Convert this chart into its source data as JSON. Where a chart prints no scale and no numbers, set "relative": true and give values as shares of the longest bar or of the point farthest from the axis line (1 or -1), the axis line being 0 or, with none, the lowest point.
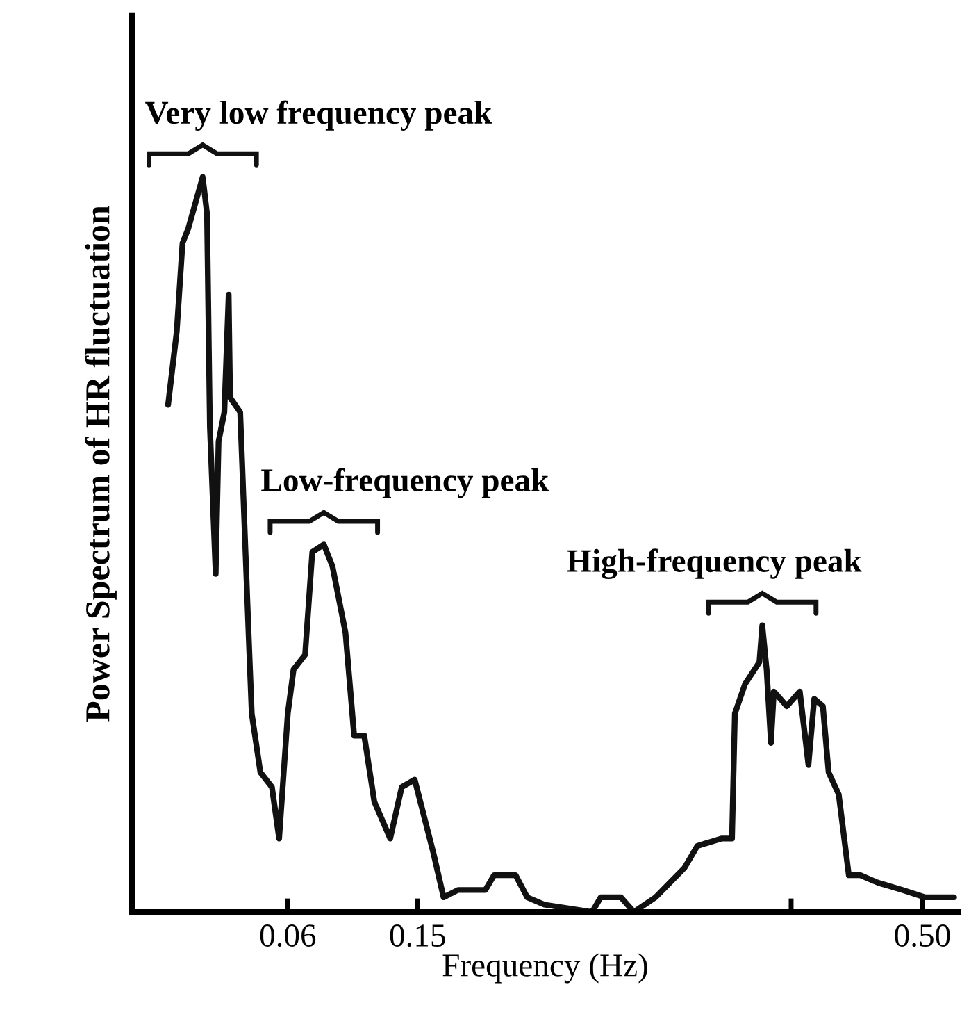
{
  "chart_data": {
    "type": "line",
    "relative": true,
    "xlabel": "Frequency (Hz)",
    "ylabel": "Power Spectrum of HR fluctuation",
    "xlim": [
      -0.048,
      0.525
    ],
    "xticks": [
      0.06,
      0.15,
      {
        "value": 0.409,
        "label": null
      },
      {
        "value": 0.5,
        "label": "0.50"
      }
    ],
    "grid": false,
    "legend": false,
    "marker": "none",
    "line_style": "solid",
    "annotations": [
      {
        "text": "Very low frequency peak",
        "x": 0.001,
        "y": 1.0
      },
      {
        "text": "Low-frequency peak",
        "x": 0.085,
        "y": 0.5
      },
      {
        "text": "High-frequency peak",
        "x": 0.389,
        "y": 0.39
      }
    ],
    "series": [
      {
        "color": "#111111",
        "x": [
          -0.023,
          -0.017,
          -0.013,
          -0.009,
          0.001,
          0.004,
          0.006,
          0.01,
          0.012,
          0.016,
          0.019,
          0.02,
          0.027,
          0.033,
          0.035,
          0.041,
          0.049,
          0.054,
          0.06,
          0.064,
          0.072,
          0.077,
          0.085,
          0.091,
          0.1,
          0.106,
          0.113,
          0.12,
          0.131,
          0.139,
          0.148,
          0.161,
          0.168,
          0.178,
          0.197,
          0.203,
          0.218,
          0.226,
          0.238,
          0.271,
          0.277,
          0.291,
          0.3,
          0.315,
          0.335,
          0.344,
          0.361,
          0.368,
          0.37,
          0.377,
          0.387,
          0.389,
          0.392,
          0.395,
          0.397,
          0.406,
          0.415,
          0.421,
          0.425,
          0.431,
          0.435,
          0.442,
          0.449,
          0.457,
          0.469,
          0.486,
          0.502,
          0.522
        ],
        "values": [
          0.69,
          0.79,
          0.91,
          0.93,
          1.0,
          0.95,
          0.66,
          0.46,
          0.64,
          0.68,
          0.84,
          0.7,
          0.68,
          0.37,
          0.27,
          0.19,
          0.17,
          0.1,
          0.27,
          0.33,
          0.35,
          0.49,
          0.5,
          0.47,
          0.38,
          0.24,
          0.24,
          0.15,
          0.1,
          0.17,
          0.18,
          0.08,
          0.02,
          0.03,
          0.03,
          0.05,
          0.05,
          0.02,
          0.01,
          0.0,
          0.02,
          0.02,
          0.0,
          0.02,
          0.06,
          0.09,
          0.1,
          0.1,
          0.27,
          0.31,
          0.34,
          0.39,
          0.33,
          0.23,
          0.3,
          0.28,
          0.3,
          0.2,
          0.29,
          0.28,
          0.19,
          0.16,
          0.05,
          0.05,
          0.04,
          0.03,
          0.02,
          0.02
        ]
      }
    ]
  }
}
